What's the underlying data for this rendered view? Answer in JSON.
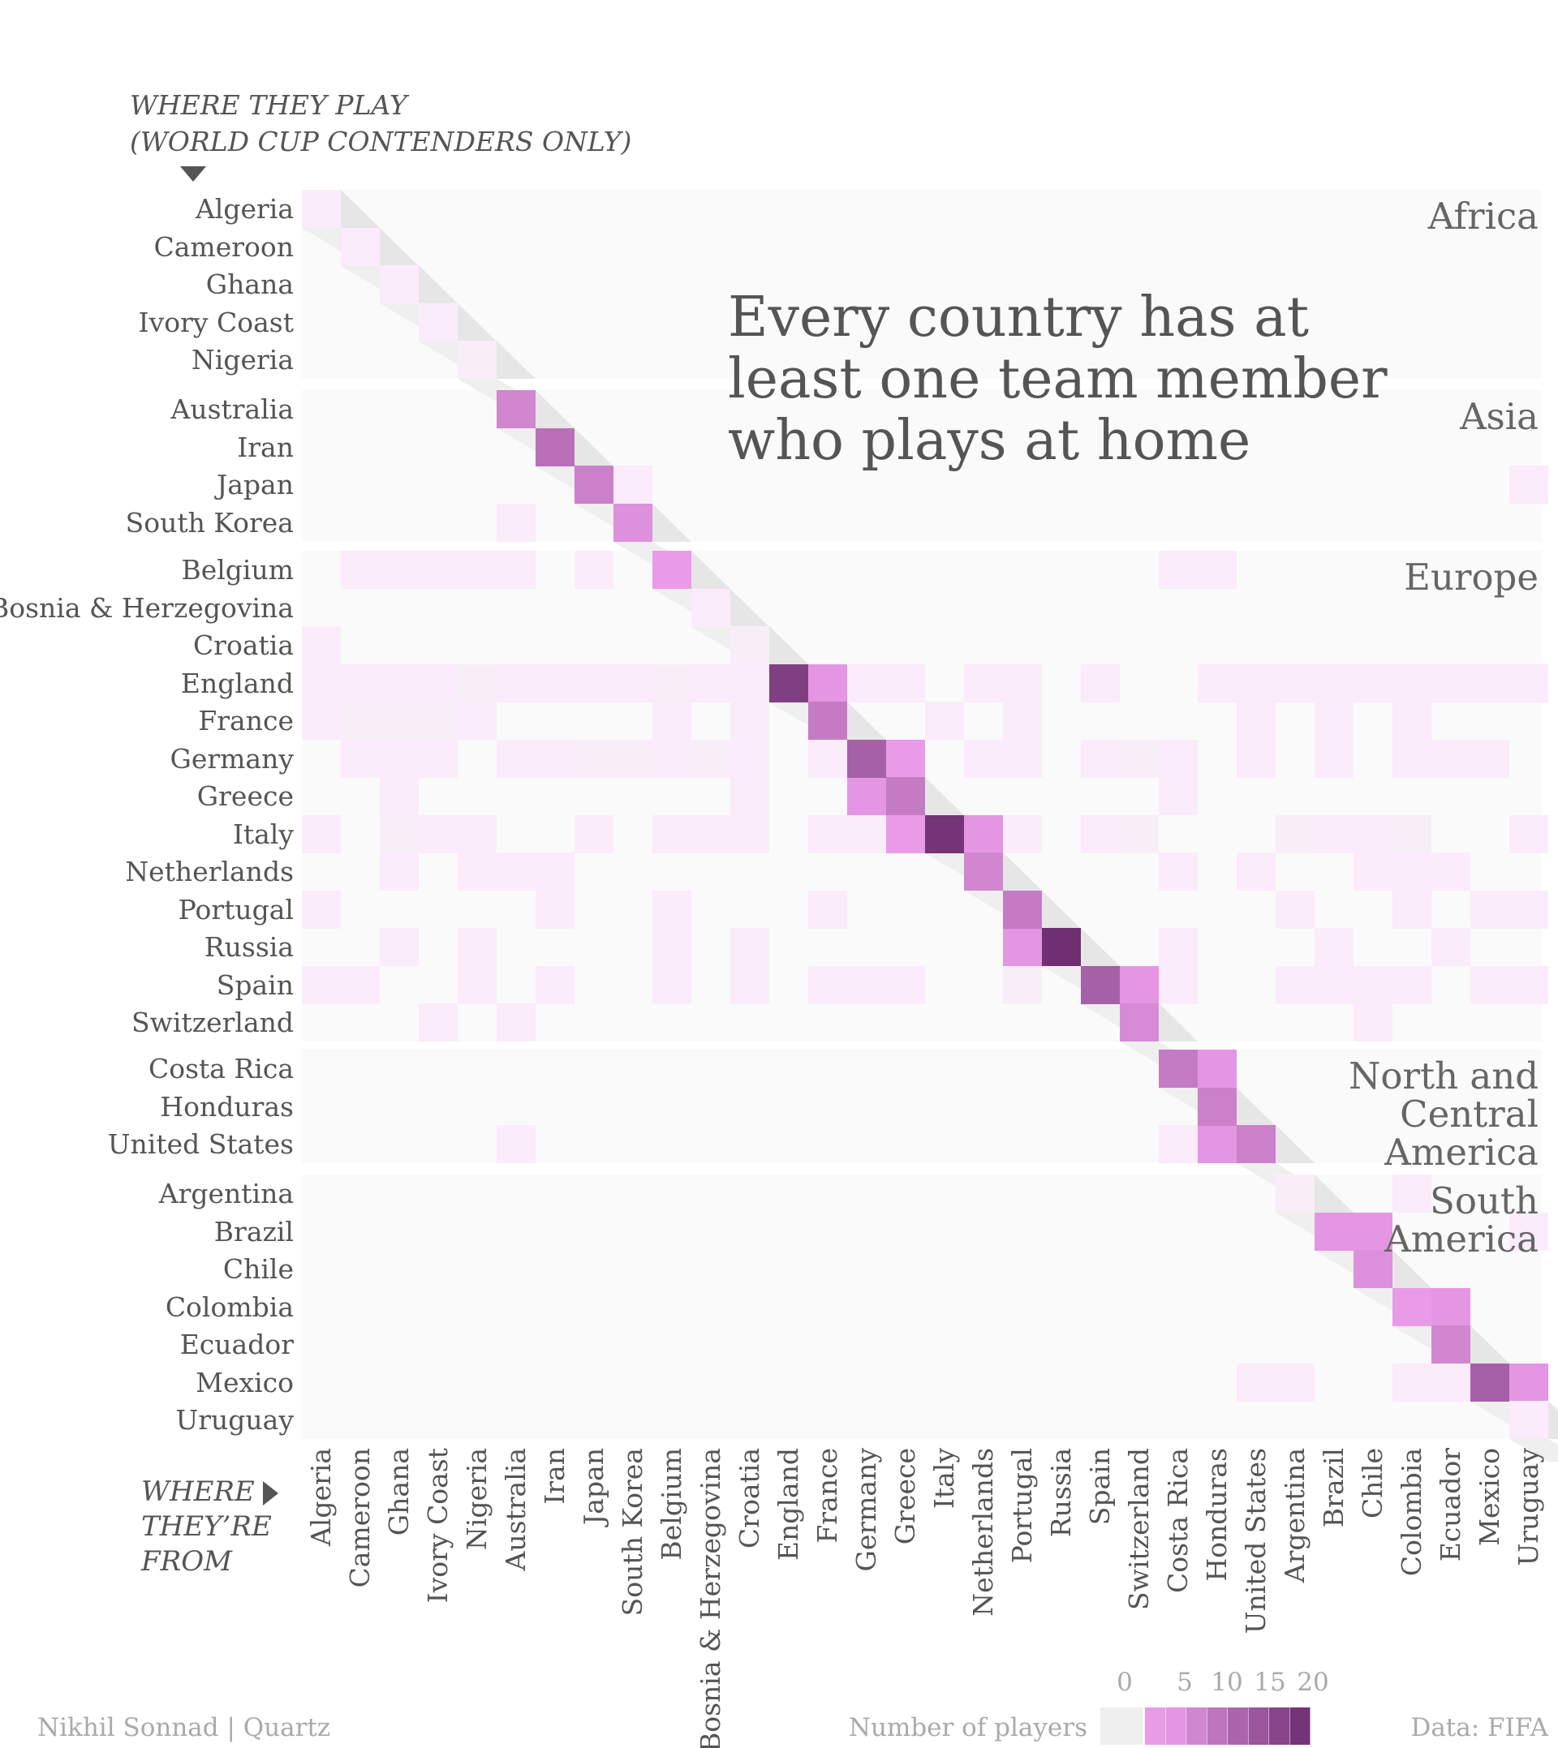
{
  "header": {
    "line1": "WHERE THEY PLAY",
    "line2": "(WORLD CUP CONTENDERS ONLY)"
  },
  "x_axis_label": [
    "WHERE",
    "THEY’RE",
    "FROM"
  ],
  "headline": [
    "Every country has at",
    "least one team member",
    "who plays at home"
  ],
  "footer": {
    "credit": "Nikhil Sonnad | Quartz",
    "source": "Data: FIFA",
    "legend_title": "Number of players",
    "legend_ticks": [
      "0",
      "5",
      "10",
      "15",
      "20"
    ]
  },
  "colors": {
    "zero": "#efefef",
    "low": "#f6a6f4",
    "high": "#6f2f71",
    "band": "#fafafa",
    "diag_shadow": "#e6e6e6"
  },
  "chart_data": {
    "type": "heatmap",
    "x_title": "WHERE THEY’RE FROM",
    "y_title": "WHERE THEY PLAY (WORLD CUP CONTENDERS ONLY)",
    "countries": [
      "Algeria",
      "Cameroon",
      "Ghana",
      "Ivory Coast",
      "Nigeria",
      "Australia",
      "Iran",
      "Japan",
      "South Korea",
      "Belgium",
      "Bosnia & Herzegovina",
      "Croatia",
      "England",
      "France",
      "Germany",
      "Greece",
      "Italy",
      "Netherlands",
      "Portugal",
      "Russia",
      "Spain",
      "Switzerland",
      "Costa Rica",
      "Honduras",
      "United States",
      "Argentina",
      "Brazil",
      "Chile",
      "Colombia",
      "Ecuador",
      "Mexico",
      "Uruguay"
    ],
    "regions": [
      {
        "name": [
          "Africa"
        ],
        "start": 0,
        "end": 4
      },
      {
        "name": [
          "Asia"
        ],
        "start": 5,
        "end": 8
      },
      {
        "name": [
          "Europe"
        ],
        "start": 9,
        "end": 21
      },
      {
        "name": [
          "North and",
          "Central",
          "America"
        ],
        "start": 22,
        "end": 24
      },
      {
        "name": [
          "South",
          "America"
        ],
        "start": 25,
        "end": 31
      }
    ],
    "legend": {
      "title": "Number of players",
      "ticks": [
        0,
        5,
        10,
        15,
        20
      ]
    },
    "diagonal": [
      1,
      1,
      1,
      1,
      2,
      7,
      11,
      8,
      5,
      3,
      1,
      2,
      20,
      9,
      14,
      9,
      22,
      7,
      9,
      23,
      14,
      6,
      9,
      8,
      8,
      2,
      4,
      5,
      3,
      7,
      14,
      1
    ],
    "off_diagonal": [
      {
        "row": 7,
        "col": 8,
        "value": 1
      },
      {
        "row": 7,
        "col": 31,
        "value": 1
      },
      {
        "row": 8,
        "col": 5,
        "value": 1
      },
      {
        "row": 9,
        "col": 1,
        "value": 1
      },
      {
        "row": 9,
        "col": 2,
        "value": 1
      },
      {
        "row": 9,
        "col": 3,
        "value": 1
      },
      {
        "row": 9,
        "col": 4,
        "value": 1
      },
      {
        "row": 9,
        "col": 5,
        "value": 1
      },
      {
        "row": 9,
        "col": 7,
        "value": 1
      },
      {
        "row": 9,
        "col": 22,
        "value": 1
      },
      {
        "row": 9,
        "col": 23,
        "value": 1
      },
      {
        "row": 11,
        "col": 0,
        "value": 1
      },
      {
        "row": 12,
        "col": 0,
        "value": 1
      },
      {
        "row": 12,
        "col": 1,
        "value": 1
      },
      {
        "row": 12,
        "col": 2,
        "value": 1
      },
      {
        "row": 12,
        "col": 3,
        "value": 1
      },
      {
        "row": 12,
        "col": 4,
        "value": 2
      },
      {
        "row": 12,
        "col": 5,
        "value": 1
      },
      {
        "row": 12,
        "col": 6,
        "value": 1
      },
      {
        "row": 12,
        "col": 7,
        "value": 1
      },
      {
        "row": 12,
        "col": 8,
        "value": 1
      },
      {
        "row": 12,
        "col": 9,
        "value": 2
      },
      {
        "row": 12,
        "col": 10,
        "value": 1
      },
      {
        "row": 12,
        "col": 11,
        "value": 1
      },
      {
        "row": 12,
        "col": 13,
        "value": 4
      },
      {
        "row": 12,
        "col": 14,
        "value": 1
      },
      {
        "row": 12,
        "col": 15,
        "value": 1
      },
      {
        "row": 12,
        "col": 17,
        "value": 1
      },
      {
        "row": 12,
        "col": 18,
        "value": 1
      },
      {
        "row": 12,
        "col": 20,
        "value": 1
      },
      {
        "row": 12,
        "col": 23,
        "value": 1
      },
      {
        "row": 12,
        "col": 24,
        "value": 1
      },
      {
        "row": 12,
        "col": 25,
        "value": 1
      },
      {
        "row": 12,
        "col": 26,
        "value": 1
      },
      {
        "row": 12,
        "col": 27,
        "value": 1
      },
      {
        "row": 12,
        "col": 28,
        "value": 1
      },
      {
        "row": 12,
        "col": 29,
        "value": 1
      },
      {
        "row": 12,
        "col": 30,
        "value": 1
      },
      {
        "row": 12,
        "col": 31,
        "value": 1
      },
      {
        "row": 13,
        "col": 0,
        "value": 1
      },
      {
        "row": 13,
        "col": 1,
        "value": 2
      },
      {
        "row": 13,
        "col": 2,
        "value": 2
      },
      {
        "row": 13,
        "col": 3,
        "value": 2
      },
      {
        "row": 13,
        "col": 4,
        "value": 1
      },
      {
        "row": 13,
        "col": 9,
        "value": 1
      },
      {
        "row": 13,
        "col": 11,
        "value": 1
      },
      {
        "row": 13,
        "col": 16,
        "value": 1
      },
      {
        "row": 13,
        "col": 18,
        "value": 1
      },
      {
        "row": 13,
        "col": 24,
        "value": 1
      },
      {
        "row": 13,
        "col": 26,
        "value": 1
      },
      {
        "row": 13,
        "col": 28,
        "value": 1
      },
      {
        "row": 14,
        "col": 1,
        "value": 1
      },
      {
        "row": 14,
        "col": 2,
        "value": 1
      },
      {
        "row": 14,
        "col": 3,
        "value": 1
      },
      {
        "row": 14,
        "col": 5,
        "value": 1
      },
      {
        "row": 14,
        "col": 6,
        "value": 1
      },
      {
        "row": 14,
        "col": 7,
        "value": 2
      },
      {
        "row": 14,
        "col": 8,
        "value": 2
      },
      {
        "row": 14,
        "col": 9,
        "value": 1
      },
      {
        "row": 14,
        "col": 10,
        "value": 2
      },
      {
        "row": 14,
        "col": 11,
        "value": 1
      },
      {
        "row": 14,
        "col": 13,
        "value": 1
      },
      {
        "row": 14,
        "col": 15,
        "value": 3
      },
      {
        "row": 14,
        "col": 17,
        "value": 1
      },
      {
        "row": 14,
        "col": 18,
        "value": 1
      },
      {
        "row": 14,
        "col": 20,
        "value": 1
      },
      {
        "row": 14,
        "col": 21,
        "value": 2
      },
      {
        "row": 14,
        "col": 22,
        "value": 1
      },
      {
        "row": 14,
        "col": 24,
        "value": 1
      },
      {
        "row": 14,
        "col": 26,
        "value": 1
      },
      {
        "row": 14,
        "col": 28,
        "value": 1
      },
      {
        "row": 14,
        "col": 29,
        "value": 1
      },
      {
        "row": 14,
        "col": 30,
        "value": 1
      },
      {
        "row": 15,
        "col": 2,
        "value": 1
      },
      {
        "row": 15,
        "col": 11,
        "value": 1
      },
      {
        "row": 15,
        "col": 14,
        "value": 4
      },
      {
        "row": 15,
        "col": 22,
        "value": 1
      },
      {
        "row": 16,
        "col": 0,
        "value": 1
      },
      {
        "row": 16,
        "col": 2,
        "value": 2
      },
      {
        "row": 16,
        "col": 3,
        "value": 1
      },
      {
        "row": 16,
        "col": 4,
        "value": 1
      },
      {
        "row": 16,
        "col": 7,
        "value": 1
      },
      {
        "row": 16,
        "col": 9,
        "value": 1
      },
      {
        "row": 16,
        "col": 10,
        "value": 1
      },
      {
        "row": 16,
        "col": 11,
        "value": 1
      },
      {
        "row": 16,
        "col": 13,
        "value": 1
      },
      {
        "row": 16,
        "col": 14,
        "value": 1
      },
      {
        "row": 16,
        "col": 15,
        "value": 3
      },
      {
        "row": 16,
        "col": 17,
        "value": 4
      },
      {
        "row": 16,
        "col": 18,
        "value": 1
      },
      {
        "row": 16,
        "col": 20,
        "value": 1
      },
      {
        "row": 16,
        "col": 21,
        "value": 2
      },
      {
        "row": 16,
        "col": 25,
        "value": 2
      },
      {
        "row": 16,
        "col": 26,
        "value": 1
      },
      {
        "row": 16,
        "col": 27,
        "value": 1
      },
      {
        "row": 16,
        "col": 28,
        "value": 2
      },
      {
        "row": 16,
        "col": 31,
        "value": 1
      },
      {
        "row": 17,
        "col": 2,
        "value": 1
      },
      {
        "row": 17,
        "col": 4,
        "value": 1
      },
      {
        "row": 17,
        "col": 5,
        "value": 1
      },
      {
        "row": 17,
        "col": 6,
        "value": 1
      },
      {
        "row": 17,
        "col": 22,
        "value": 1
      },
      {
        "row": 17,
        "col": 24,
        "value": 1
      },
      {
        "row": 17,
        "col": 27,
        "value": 1
      },
      {
        "row": 17,
        "col": 28,
        "value": 1
      },
      {
        "row": 17,
        "col": 29,
        "value": 1
      },
      {
        "row": 18,
        "col": 0,
        "value": 1
      },
      {
        "row": 18,
        "col": 6,
        "value": 1
      },
      {
        "row": 18,
        "col": 9,
        "value": 1
      },
      {
        "row": 18,
        "col": 13,
        "value": 1
      },
      {
        "row": 18,
        "col": 25,
        "value": 1
      },
      {
        "row": 18,
        "col": 28,
        "value": 1
      },
      {
        "row": 18,
        "col": 30,
        "value": 1
      },
      {
        "row": 18,
        "col": 31,
        "value": 1
      },
      {
        "row": 19,
        "col": 2,
        "value": 1
      },
      {
        "row": 19,
        "col": 4,
        "value": 1
      },
      {
        "row": 19,
        "col": 9,
        "value": 1
      },
      {
        "row": 19,
        "col": 11,
        "value": 1
      },
      {
        "row": 19,
        "col": 18,
        "value": 4
      },
      {
        "row": 19,
        "col": 22,
        "value": 1
      },
      {
        "row": 19,
        "col": 26,
        "value": 1
      },
      {
        "row": 19,
        "col": 29,
        "value": 1
      },
      {
        "row": 20,
        "col": 0,
        "value": 1
      },
      {
        "row": 20,
        "col": 1,
        "value": 1
      },
      {
        "row": 20,
        "col": 4,
        "value": 1
      },
      {
        "row": 20,
        "col": 6,
        "value": 1
      },
      {
        "row": 20,
        "col": 9,
        "value": 1
      },
      {
        "row": 20,
        "col": 11,
        "value": 1
      },
      {
        "row": 20,
        "col": 13,
        "value": 1
      },
      {
        "row": 20,
        "col": 14,
        "value": 1
      },
      {
        "row": 20,
        "col": 15,
        "value": 1
      },
      {
        "row": 20,
        "col": 18,
        "value": 2
      },
      {
        "row": 20,
        "col": 21,
        "value": 4
      },
      {
        "row": 20,
        "col": 22,
        "value": 1
      },
      {
        "row": 20,
        "col": 25,
        "value": 1
      },
      {
        "row": 20,
        "col": 26,
        "value": 1
      },
      {
        "row": 20,
        "col": 27,
        "value": 1
      },
      {
        "row": 20,
        "col": 28,
        "value": 1
      },
      {
        "row": 20,
        "col": 30,
        "value": 1
      },
      {
        "row": 20,
        "col": 31,
        "value": 1
      },
      {
        "row": 21,
        "col": 3,
        "value": 1
      },
      {
        "row": 21,
        "col": 5,
        "value": 1
      },
      {
        "row": 21,
        "col": 27,
        "value": 1
      },
      {
        "row": 22,
        "col": 23,
        "value": 4
      },
      {
        "row": 24,
        "col": 5,
        "value": 1
      },
      {
        "row": 24,
        "col": 22,
        "value": 1
      },
      {
        "row": 24,
        "col": 23,
        "value": 4
      },
      {
        "row": 25,
        "col": 28,
        "value": 1
      },
      {
        "row": 26,
        "col": 27,
        "value": 4
      },
      {
        "row": 26,
        "col": 31,
        "value": 1
      },
      {
        "row": 28,
        "col": 29,
        "value": 4
      },
      {
        "row": 30,
        "col": 24,
        "value": 1
      },
      {
        "row": 30,
        "col": 25,
        "value": 1
      },
      {
        "row": 30,
        "col": 28,
        "value": 1
      },
      {
        "row": 30,
        "col": 29,
        "value": 1
      },
      {
        "row": 30,
        "col": 31,
        "value": 4
      }
    ]
  }
}
